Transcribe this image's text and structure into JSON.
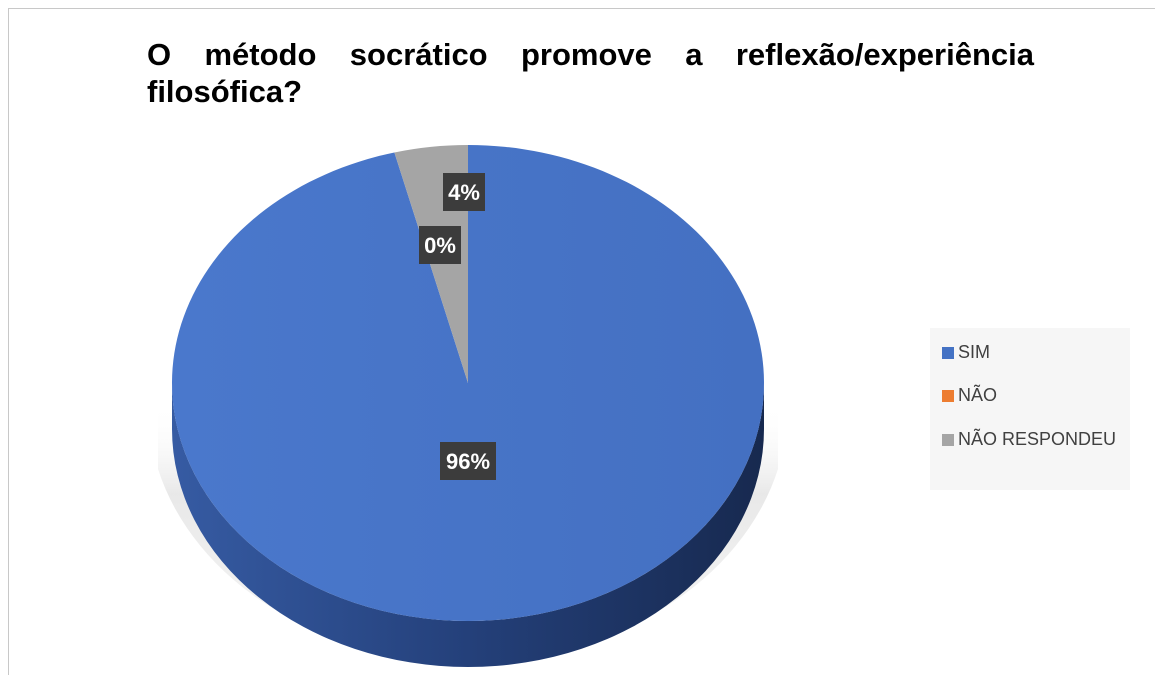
{
  "chart_data": {
    "type": "pie",
    "title": "O método socrático promove a reflexão/experiência filosófica?",
    "categories": [
      "SIM",
      "NÃO",
      "NÃO RESPONDEU"
    ],
    "values": [
      96,
      0,
      4
    ],
    "data_labels": [
      "96%",
      "0%",
      "4%"
    ],
    "colors": [
      "#4472c4",
      "#ed7d31",
      "#a5a5a5"
    ],
    "three_d": true,
    "legend_position": "right"
  }
}
